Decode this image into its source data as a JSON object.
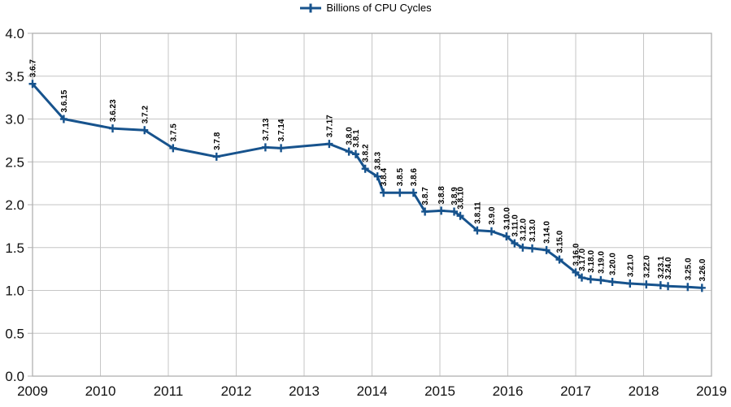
{
  "window": {
    "background": "#ffffff"
  },
  "legend": {
    "label": "Billions of CPU Cycles"
  },
  "chart_data": {
    "type": "line",
    "title": "",
    "xlabel": "",
    "ylabel": "",
    "legend_entries": [
      "Billions of CPU Cycles"
    ],
    "legend_position": "top-center",
    "grid": true,
    "marker_style": "plus",
    "colors": {
      "series": "#17538d",
      "gridline": "#c6c6c6",
      "plot_border": "#b0b0b0",
      "axis_text": "#111111",
      "data_label_text": "#000000"
    },
    "xlim": [
      2009,
      2019
    ],
    "ylim": [
      0.0,
      4.0
    ],
    "x_tick_labels": [
      "2009",
      "2010",
      "2011",
      "2012",
      "2013",
      "2014",
      "2015",
      "2016",
      "2017",
      "2018",
      "2019"
    ],
    "y_tick_labels": [
      "0.0",
      "0.5",
      "1.0",
      "1.5",
      "2.0",
      "2.5",
      "3.0",
      "3.5",
      "4.0"
    ],
    "series": [
      {
        "name": "Billions of CPU Cycles",
        "points": [
          {
            "label": "3.6.7",
            "x": 2009.0,
            "y": 3.41
          },
          {
            "label": "3.6.15",
            "x": 2009.46,
            "y": 3.0
          },
          {
            "label": "3.6.23",
            "x": 2010.18,
            "y": 2.89
          },
          {
            "label": "3.7.2",
            "x": 2010.65,
            "y": 2.87
          },
          {
            "label": "3.7.5",
            "x": 2011.07,
            "y": 2.66
          },
          {
            "label": "3.7.8",
            "x": 2011.71,
            "y": 2.56
          },
          {
            "label": "3.7.13",
            "x": 2012.43,
            "y": 2.67
          },
          {
            "label": "3.7.14",
            "x": 2012.66,
            "y": 2.66
          },
          {
            "label": "3.7.17",
            "x": 2013.37,
            "y": 2.71
          },
          {
            "label": "3.8.0",
            "x": 2013.66,
            "y": 2.62
          },
          {
            "label": "3.8.1",
            "x": 2013.76,
            "y": 2.59
          },
          {
            "label": "3.8.2",
            "x": 2013.9,
            "y": 2.42
          },
          {
            "label": "3.8.3",
            "x": 2014.08,
            "y": 2.33
          },
          {
            "label": "3.8.4",
            "x": 2014.17,
            "y": 2.14
          },
          {
            "label": "3.8.5",
            "x": 2014.41,
            "y": 2.14
          },
          {
            "label": "3.8.6",
            "x": 2014.61,
            "y": 2.14
          },
          {
            "label": "3.8.7",
            "x": 2014.78,
            "y": 1.92
          },
          {
            "label": "3.8.8",
            "x": 2015.02,
            "y": 1.93
          },
          {
            "label": "3.8.9",
            "x": 2015.21,
            "y": 1.92
          },
          {
            "label": "3.8.10",
            "x": 2015.3,
            "y": 1.87
          },
          {
            "label": "3.8.11",
            "x": 2015.55,
            "y": 1.7
          },
          {
            "label": "3.9.0",
            "x": 2015.76,
            "y": 1.69
          },
          {
            "label": "3.10.0",
            "x": 2015.98,
            "y": 1.63
          },
          {
            "label": "3.11.0",
            "x": 2016.1,
            "y": 1.55
          },
          {
            "label": "3.12.0",
            "x": 2016.22,
            "y": 1.5
          },
          {
            "label": "3.13.0",
            "x": 2016.36,
            "y": 1.49
          },
          {
            "label": "3.14.0",
            "x": 2016.57,
            "y": 1.47
          },
          {
            "label": "3.15.0",
            "x": 2016.76,
            "y": 1.36
          },
          {
            "label": "3.16.0",
            "x": 2017.0,
            "y": 1.21
          },
          {
            "label": "3.17.0",
            "x": 2017.09,
            "y": 1.15
          },
          {
            "label": "3.18.0",
            "x": 2017.22,
            "y": 1.13
          },
          {
            "label": "3.19.0",
            "x": 2017.37,
            "y": 1.12
          },
          {
            "label": "3.20.0",
            "x": 2017.54,
            "y": 1.1
          },
          {
            "label": "3.21.0",
            "x": 2017.8,
            "y": 1.08
          },
          {
            "label": "3.22.0",
            "x": 2018.04,
            "y": 1.07
          },
          {
            "label": "3.23.1",
            "x": 2018.25,
            "y": 1.06
          },
          {
            "label": "3.24.0",
            "x": 2018.36,
            "y": 1.05
          },
          {
            "label": "3.25.0",
            "x": 2018.65,
            "y": 1.04
          },
          {
            "label": "3.26.0",
            "x": 2018.86,
            "y": 1.03
          }
        ]
      }
    ]
  }
}
